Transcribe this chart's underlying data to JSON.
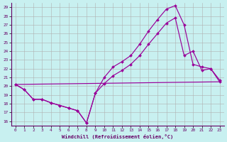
{
  "bg_color": "#c8f0f0",
  "line_color": "#990099",
  "xlabel": "Windchill (Refroidissement éolien,°C)",
  "xlim": [
    -0.5,
    23.5
  ],
  "ylim": [
    15.5,
    29.5
  ],
  "xticks": [
    0,
    1,
    2,
    3,
    4,
    5,
    6,
    7,
    8,
    9,
    10,
    11,
    12,
    13,
    14,
    15,
    16,
    17,
    18,
    19,
    20,
    21,
    22,
    23
  ],
  "yticks": [
    16,
    17,
    18,
    19,
    20,
    21,
    22,
    23,
    24,
    25,
    26,
    27,
    28,
    29
  ],
  "curve1_x": [
    0,
    1,
    2,
    3,
    4,
    5,
    6,
    7,
    8,
    9,
    10,
    11,
    12,
    13,
    14,
    15,
    16,
    17,
    18,
    19,
    20,
    21,
    22,
    23
  ],
  "curve1_y": [
    20.2,
    19.6,
    18.5,
    18.5,
    18.1,
    17.8,
    17.5,
    17.2,
    15.8,
    19.2,
    21.0,
    22.2,
    22.8,
    23.5,
    24.8,
    26.3,
    27.6,
    28.8,
    29.2,
    27.0,
    22.5,
    22.2,
    22.0,
    20.7
  ],
  "curve2_x": [
    0,
    1,
    2,
    3,
    4,
    5,
    6,
    7,
    8,
    9,
    10,
    11,
    12,
    13,
    14,
    15,
    16,
    17,
    18,
    19,
    20,
    21,
    22,
    23
  ],
  "curve2_y": [
    20.2,
    19.6,
    18.5,
    18.5,
    18.1,
    17.8,
    17.5,
    17.2,
    15.8,
    19.2,
    20.3,
    21.2,
    21.8,
    22.5,
    23.5,
    24.8,
    26.0,
    27.2,
    27.8,
    23.5,
    24.0,
    21.8,
    22.0,
    20.5
  ],
  "curve3_x": [
    0,
    23
  ],
  "curve3_y": [
    20.2,
    20.5
  ],
  "grid_color": "#b0b0b0"
}
